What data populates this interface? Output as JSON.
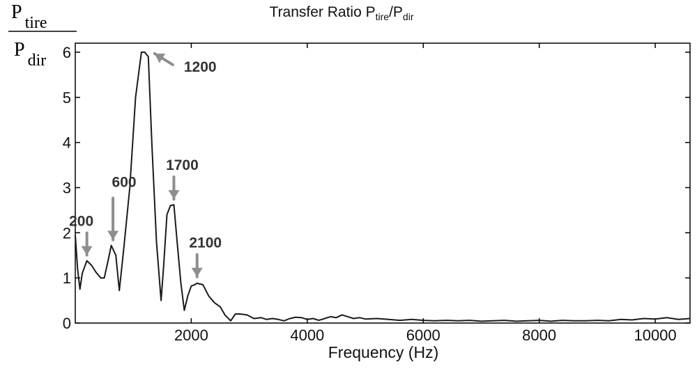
{
  "chart_data": {
    "type": "line",
    "title": {
      "prefix": "Transfer Ratio P",
      "sub1": "tire",
      "mid": "/P",
      "sub2": "dir"
    },
    "ylabel": {
      "num_main": "P",
      "num_sub": "tire",
      "den_main": "P",
      "den_sub": "dir"
    },
    "xlabel": "Frequency (Hz)",
    "xlim": [
      0,
      10600
    ],
    "ylim": [
      0,
      6.2
    ],
    "xticks": [
      2000,
      4000,
      6000,
      8000,
      10000
    ],
    "yticks": [
      0,
      1,
      2,
      3,
      4,
      5,
      6
    ],
    "grid": false,
    "series": [
      {
        "x": [
          0,
          40,
          80,
          120,
          200,
          280,
          360,
          440,
          500,
          560,
          620,
          700,
          760,
          840,
          940,
          1040,
          1140,
          1200,
          1260,
          1320,
          1400,
          1480,
          1520,
          1580,
          1640,
          1700,
          1760,
          1820,
          1880,
          1940,
          2000,
          2060,
          2100,
          2200,
          2300,
          2400,
          2500,
          2580,
          2680,
          2760,
          2840,
          2960,
          3080,
          3200,
          3300,
          3400,
          3500,
          3600,
          3700,
          3800,
          3900,
          4000,
          4100,
          4200,
          4300,
          4400,
          4500,
          4600,
          4700,
          4800,
          4900,
          5000,
          5200,
          5400,
          5600,
          5800,
          6000,
          6200,
          6400,
          6600,
          6800,
          7000,
          7200,
          7400,
          7600,
          7800,
          8000,
          8200,
          8400,
          8600,
          8800,
          9000,
          9200,
          9400,
          9600,
          9800,
          10000,
          10200,
          10400,
          10600
        ],
        "y": [
          1.95,
          1.2,
          0.75,
          1.1,
          1.38,
          1.28,
          1.12,
          1.0,
          1.0,
          1.35,
          1.72,
          1.5,
          0.72,
          1.7,
          3.0,
          5.0,
          6.0,
          6.0,
          5.9,
          4.0,
          1.8,
          0.5,
          1.2,
          2.4,
          2.6,
          2.62,
          1.75,
          0.9,
          0.28,
          0.6,
          0.82,
          0.85,
          0.88,
          0.85,
          0.6,
          0.45,
          0.36,
          0.18,
          0.05,
          0.2,
          0.2,
          0.18,
          0.1,
          0.12,
          0.08,
          0.1,
          0.08,
          0.05,
          0.1,
          0.13,
          0.12,
          0.08,
          0.1,
          0.06,
          0.1,
          0.14,
          0.12,
          0.18,
          0.14,
          0.1,
          0.12,
          0.09,
          0.1,
          0.08,
          0.06,
          0.08,
          0.06,
          0.05,
          0.06,
          0.05,
          0.06,
          0.04,
          0.05,
          0.06,
          0.04,
          0.05,
          0.06,
          0.04,
          0.06,
          0.05,
          0.05,
          0.06,
          0.05,
          0.08,
          0.07,
          0.1,
          0.09,
          0.12,
          0.08,
          0.1
        ]
      }
    ],
    "annotations": [
      {
        "text": "1200",
        "x": 1200,
        "y": 6.0,
        "arrow": "from-lower-right"
      },
      {
        "text": "600",
        "x": 650,
        "y": 1.72,
        "arrow": "down"
      },
      {
        "text": "200",
        "x": 200,
        "y": 1.38,
        "arrow": "down"
      },
      {
        "text": "1700",
        "x": 1700,
        "y": 2.62,
        "arrow": "down"
      },
      {
        "text": "2100",
        "x": 2100,
        "y": 0.9,
        "arrow": "down"
      }
    ],
    "colors": {
      "line": "#1a1a1a",
      "axis": "#000000",
      "arrow": "#8e8e8e",
      "annotation_text": "#333333"
    }
  }
}
